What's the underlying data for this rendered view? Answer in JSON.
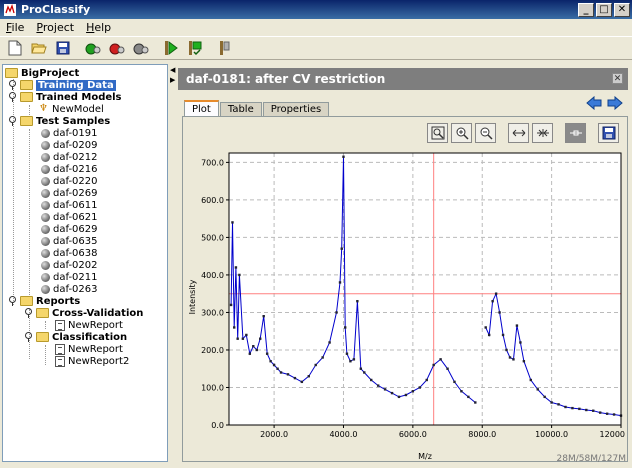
{
  "window": {
    "title": "ProClassify",
    "min": "_",
    "max": "□",
    "close": "✕"
  },
  "menu": [
    {
      "label": "File",
      "u": "F",
      "rest": "ile"
    },
    {
      "label": "Project",
      "u": "P",
      "rest": "roject"
    },
    {
      "label": "Help",
      "u": "H",
      "rest": "elp"
    }
  ],
  "toolbar_icons": [
    "new-file-icon",
    "open-folder-icon",
    "save-icon",
    "add-green-icon",
    "add-red-icon",
    "add-gray-icon",
    "run-icon",
    "run-check-icon",
    "bookmark-icon"
  ],
  "tree": {
    "root": "BigProject",
    "training_data": "Training Data",
    "trained_models": "Trained Models",
    "model": "NewModel",
    "test_samples": "Test Samples",
    "samples": [
      "daf-0191",
      "daf-0209",
      "daf-0212",
      "daf-0216",
      "daf-0220",
      "daf-0269",
      "daf-0611",
      "daf-0621",
      "daf-0629",
      "daf-0635",
      "daf-0638",
      "daf-0202",
      "daf-0211",
      "daf-0263"
    ],
    "reports": "Reports",
    "cross_validation": "Cross-Validation",
    "cv_report": "NewReport",
    "classification": "Classification",
    "class_reports": [
      "NewReport",
      "NewReport2"
    ]
  },
  "document": {
    "title": "daf-0181: after CV restriction",
    "close": "✕"
  },
  "tabs": [
    "Plot",
    "Table",
    "Properties"
  ],
  "active_tab": "Plot",
  "plot_toolbar_icons": [
    "zoom-box-icon",
    "zoom-in-icon",
    "zoom-out-icon",
    "expand-x-icon",
    "contract-x-icon",
    "crosshair-toggle-icon",
    "save-plot-icon"
  ],
  "status": {
    "memory": "28M/58M/127M"
  },
  "colors": {
    "series": "#0000cc",
    "crosshair": "#ff8080",
    "header": "#7e7e7e",
    "selection": "#316ac5"
  },
  "chart_data": {
    "type": "line",
    "xlabel": "M/z",
    "ylabel": "Intensity",
    "xlim": [
      700,
      12000
    ],
    "ylim": [
      0,
      725
    ],
    "xticks": [
      2000,
      4000,
      6000,
      8000,
      10000,
      12000
    ],
    "xtick_labels": [
      "2000.0",
      "4000.0",
      "6000.0",
      "8000.0",
      "10000.0",
      "12000"
    ],
    "yticks": [
      0,
      100,
      200,
      300,
      400,
      500,
      600,
      700
    ],
    "ytick_labels": [
      "0.0",
      "100.0",
      "200.0",
      "300.0",
      "400.0",
      "500.0",
      "600.0",
      "700.0"
    ],
    "grid": true,
    "crosshair": {
      "x": 6600,
      "y": 350
    },
    "series": [
      {
        "x": [
          760,
          800,
          850,
          900,
          950,
          1000,
          1100,
          1200,
          1300,
          1400,
          1500,
          1600,
          1700,
          1800,
          1900,
          2000,
          2100,
          2200,
          2400,
          2600,
          2800,
          3000,
          3200,
          3400,
          3600,
          3800,
          3900,
          3950,
          4000,
          4050,
          4100,
          4200,
          4300,
          4400,
          4500,
          4600,
          4800,
          5000,
          5200,
          5400,
          5600,
          5800,
          6000,
          6200,
          6400,
          6600,
          6800,
          7000,
          7200,
          7400,
          7600,
          7800,
          8000,
          8100,
          8200,
          8300,
          8400,
          8500,
          8600,
          8700,
          8800,
          8900,
          9000,
          9100,
          9200,
          9400,
          9600,
          9800,
          10000,
          10200,
          10400,
          10600,
          10800,
          11000,
          11200,
          11400,
          11600,
          11800,
          12000
        ],
        "y": [
          320,
          540,
          260,
          420,
          230,
          400,
          230,
          240,
          190,
          210,
          200,
          230,
          290,
          190,
          170,
          160,
          150,
          140,
          135,
          125,
          115,
          130,
          160,
          180,
          220,
          300,
          380,
          470,
          715,
          260,
          190,
          170,
          175,
          330,
          150,
          140,
          120,
          105,
          95,
          85,
          75,
          80,
          90,
          100,
          120,
          160,
          175,
          150,
          115,
          90,
          75,
          60,
          null,
          260,
          240,
          330,
          350,
          300,
          240,
          200,
          180,
          175,
          265,
          220,
          170,
          120,
          95,
          75,
          60,
          55,
          48,
          45,
          43,
          40,
          38,
          33,
          30,
          28,
          25
        ]
      }
    ]
  }
}
